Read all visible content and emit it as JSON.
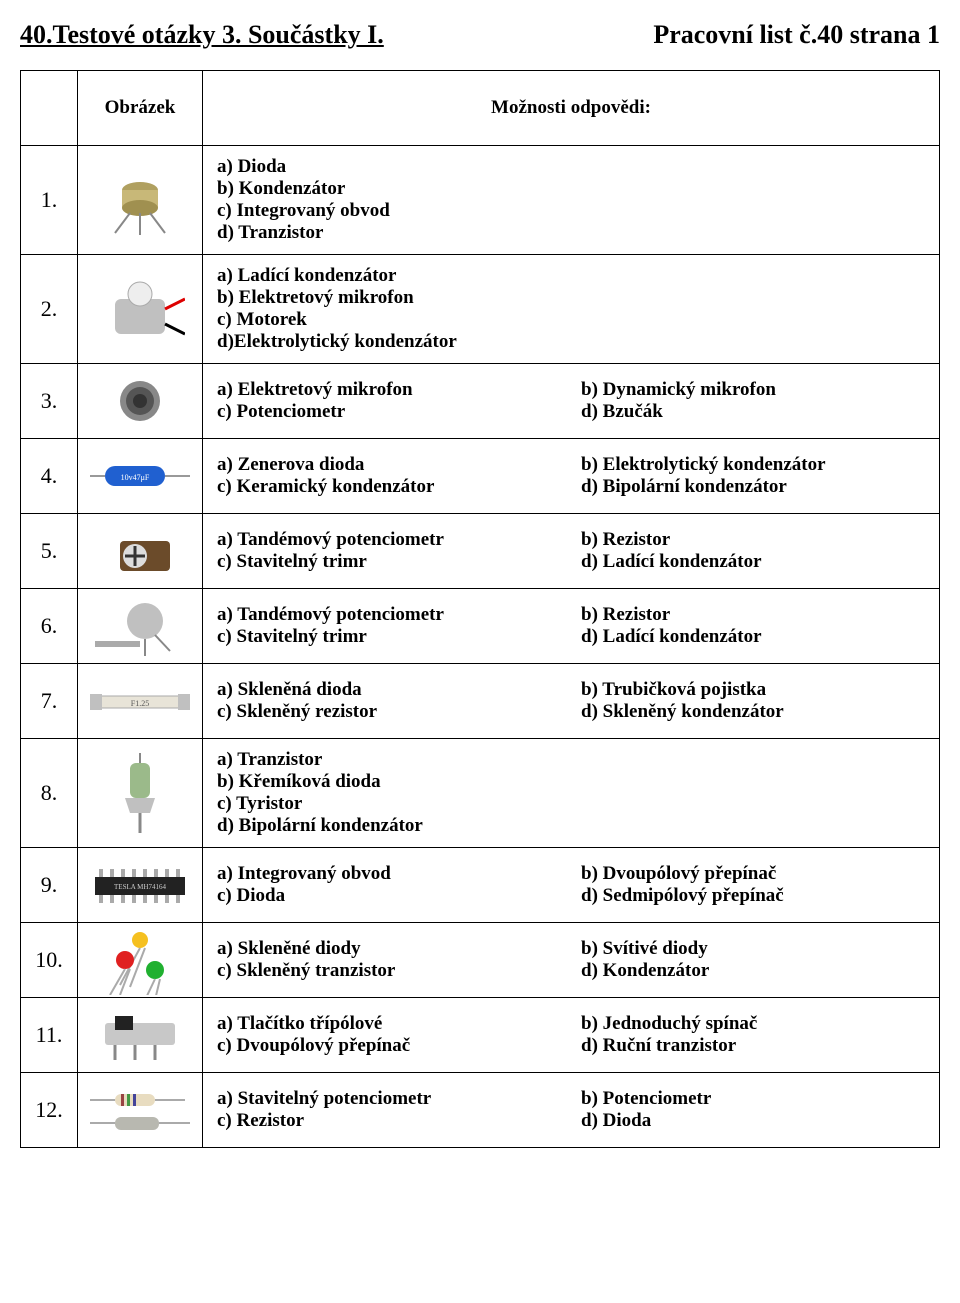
{
  "title_left": "40.Testové otázky 3. Součástky I.",
  "title_right": "Pracovní list č.40 strana 1",
  "header_img": "Obrázek",
  "header_ans": "Možnosti odpovědi:",
  "rows": [
    {
      "num": "1.",
      "layout": "single",
      "opts": [
        "a) Dioda",
        "b) Kondenzátor",
        "c) Integrovaný obvod",
        "d) Tranzistor"
      ]
    },
    {
      "num": "2.",
      "layout": "single",
      "opts": [
        "a) Ladící kondenzátor",
        "b) Elektretový mikrofon",
        "c) Motorek",
        "d)Elektrolytický kondenzátor"
      ]
    },
    {
      "num": "3.",
      "layout": "two",
      "left": [
        "a) Elektretový mikrofon",
        "c) Potenciometr"
      ],
      "right": [
        "b) Dynamický mikrofon",
        "d) Bzučák"
      ]
    },
    {
      "num": "4.",
      "layout": "two",
      "left": [
        "a) Zenerova dioda",
        "c) Keramický kondenzátor"
      ],
      "right": [
        "b) Elektrolytický kondenzátor",
        "d) Bipolární kondenzátor"
      ]
    },
    {
      "num": "5.",
      "layout": "two",
      "left": [
        "a) Tandémový potenciometr",
        "c) Stavitelný trimr"
      ],
      "right": [
        "b) Rezistor",
        "d) Ladící kondenzátor"
      ]
    },
    {
      "num": "6.",
      "layout": "two",
      "left": [
        "a) Tandémový potenciometr",
        "c) Stavitelný trimr"
      ],
      "right": [
        "b) Rezistor",
        "d) Ladící kondenzátor"
      ]
    },
    {
      "num": "7.",
      "layout": "two",
      "left": [
        "a) Skleněná dioda",
        "c) Skleněný rezistor"
      ],
      "right": [
        "b) Trubičková pojistka",
        "d) Skleněný kondenzátor"
      ]
    },
    {
      "num": "8.",
      "layout": "single",
      "opts": [
        "a) Tranzistor",
        "b) Křemíková dioda",
        "c) Tyristor",
        "d) Bipolární kondenzátor"
      ]
    },
    {
      "num": "9.",
      "layout": "two",
      "left": [
        "a) Integrovaný obvod",
        "c) Dioda"
      ],
      "right": [
        "b) Dvoupólový přepínač",
        "d) Sedmipólový přepínač"
      ]
    },
    {
      "num": "10.",
      "layout": "two",
      "left": [
        "a) Skleněné diody",
        "c) Skleněný tranzistor"
      ],
      "right": [
        "b) Svítivé diody",
        "d) Kondenzátor"
      ]
    },
    {
      "num": "11.",
      "layout": "two",
      "left": [
        "a) Tlačítko třípólové",
        "c) Dvoupólový přepínač"
      ],
      "right": [
        "b) Jednoduchý spínač",
        "d) Ruční tranzistor"
      ]
    },
    {
      "num": "12.",
      "layout": "two",
      "left": [
        "a) Stavitelný potenciometr",
        "c) Rezistor"
      ],
      "right": [
        "b) Potenciometr",
        "d) Dioda"
      ]
    }
  ]
}
